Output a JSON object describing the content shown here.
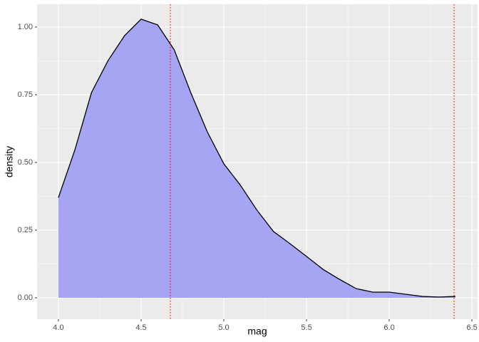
{
  "chart_data": {
    "type": "area",
    "x_label": "mag",
    "y_label": "density",
    "x": [
      4.0,
      4.1,
      4.2,
      4.3,
      4.4,
      4.5,
      4.6,
      4.7,
      4.8,
      4.9,
      5.0,
      5.1,
      5.2,
      5.3,
      5.4,
      5.5,
      5.6,
      5.7,
      5.8,
      5.9,
      6.0,
      6.1,
      6.2,
      6.3,
      6.4
    ],
    "values": [
      0.37,
      0.547,
      0.758,
      0.876,
      0.968,
      1.029,
      1.008,
      0.916,
      0.758,
      0.613,
      0.495,
      0.416,
      0.324,
      0.245,
      0.2,
      0.153,
      0.105,
      0.068,
      0.034,
      0.021,
      0.021,
      0.013,
      0.005,
      0.003,
      0.005
    ],
    "fill": "#a5a5f3",
    "line_color": "#000000",
    "vlines": [
      {
        "value": 4.677,
        "color": "#ff0000"
      },
      {
        "value": 6.392,
        "color": "#ff0000"
      }
    ],
    "xlim": [
      3.871,
      6.534
    ],
    "ylim": [
      -0.079,
      1.084
    ],
    "xticks": [
      {
        "value": 4.0,
        "label": "4.0"
      },
      4.5,
      {
        "value": 5.0,
        "label": "5.0"
      },
      5.5,
      {
        "value": 6.0,
        "label": "6.0"
      },
      6.5
    ],
    "yticks": [
      {
        "value": 0,
        "label": "0.00"
      },
      0.25,
      {
        "value": 0.5,
        "label": "0.50"
      },
      0.75,
      {
        "value": 1.0,
        "label": "1.00"
      }
    ],
    "grid": true
  }
}
